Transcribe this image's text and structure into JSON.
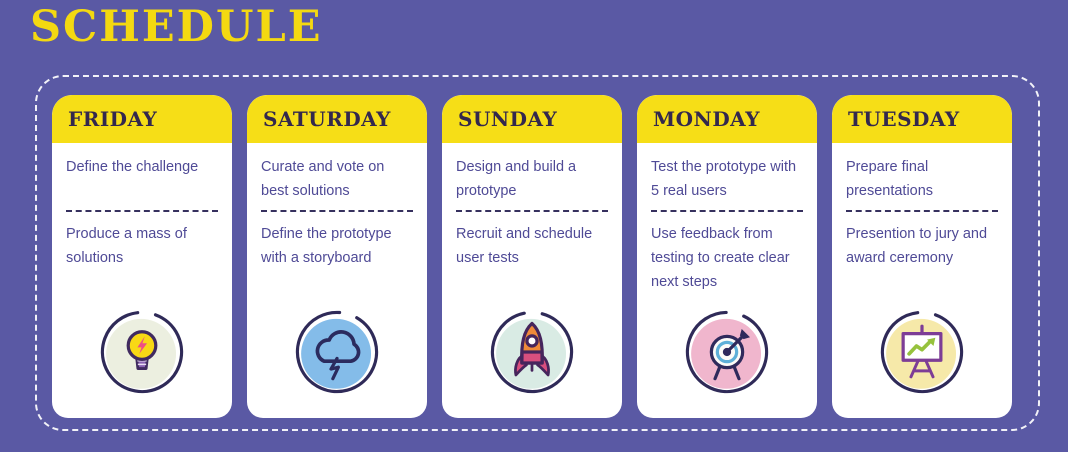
{
  "page": {
    "title": "SCHEDULE"
  },
  "colors": {
    "background_purple": "#5a59a4",
    "accent_yellow": "#f6de17",
    "title_yellow": "#f4d911",
    "header_text": "#33284d",
    "body_text": "#4f4a96",
    "outline_navy": "#2f2a58",
    "dashed_border": "#ffffff"
  },
  "cards": [
    {
      "day": "FRIDAY",
      "task1": "Define the challenge",
      "task2": "Produce a mass of solutions",
      "icon": "lightbulb-icon",
      "icon_bg": "#ecefe0"
    },
    {
      "day": "SATURDAY",
      "task1": "Curate and vote on best solutions",
      "task2": "Define the prototype with a storyboard",
      "icon": "storm-cloud-icon",
      "icon_bg": "#84bce9"
    },
    {
      "day": "SUNDAY",
      "task1": "Design and build a prototype",
      "task2": "Recruit and schedule user tests",
      "icon": "rocket-icon",
      "icon_bg": "#d9ebe4"
    },
    {
      "day": "MONDAY",
      "task1": "Test the prototype with 5 real users",
      "task2": "Use feedback from testing to create clear next steps",
      "icon": "dart-target-icon",
      "icon_bg": "#f0b6cd"
    },
    {
      "day": "TUESDAY",
      "task1": "Prepare final presentations",
      "task2": "Presention to jury and award ceremony",
      "icon": "presentation-chart-icon",
      "icon_bg": "#f6e9a9"
    }
  ]
}
